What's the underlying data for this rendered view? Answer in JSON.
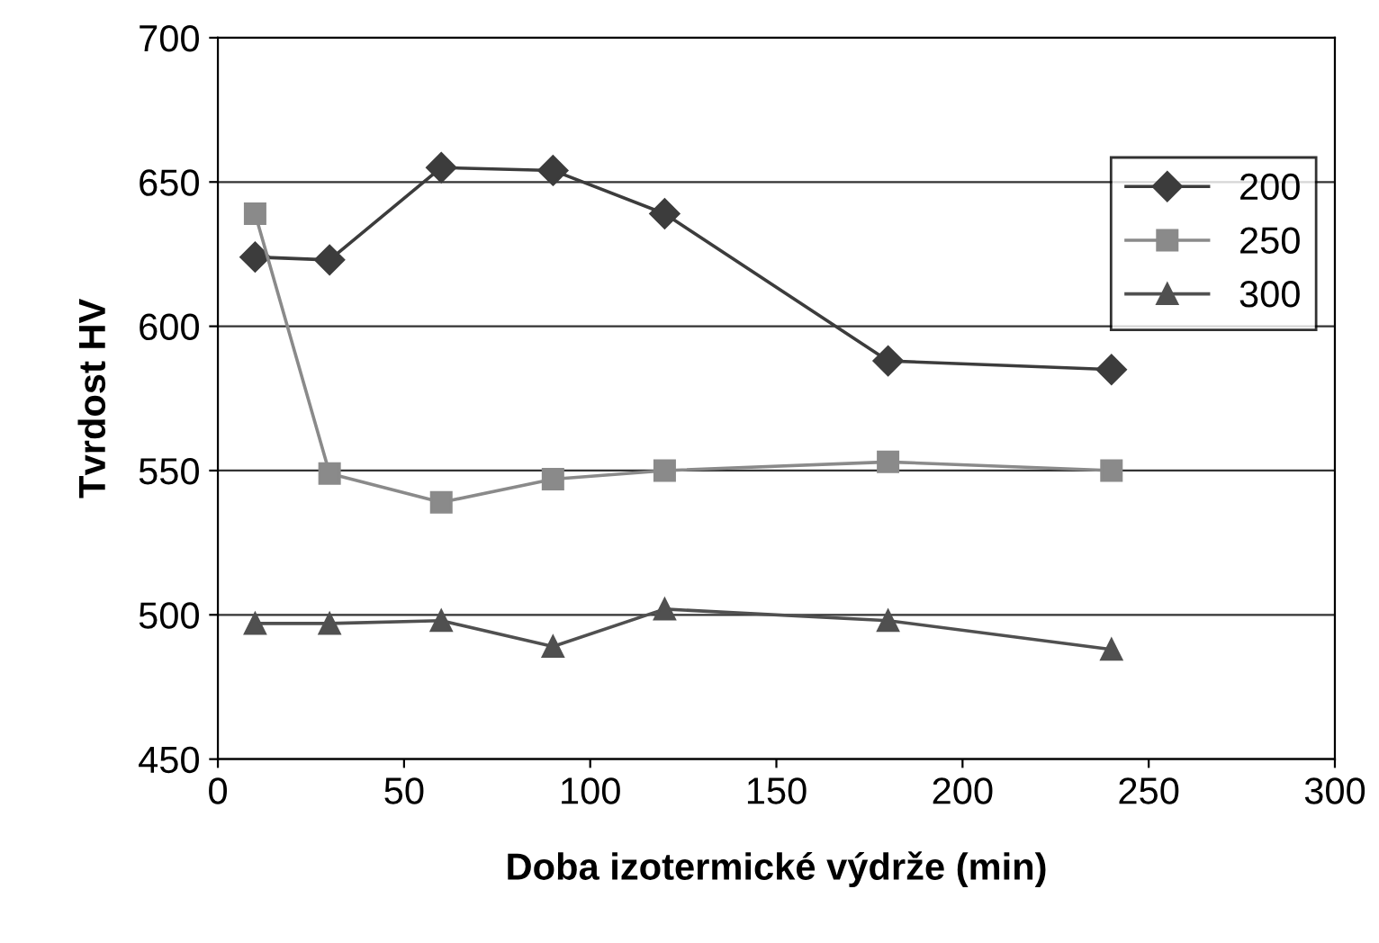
{
  "chart_data": {
    "type": "line",
    "xlabel": "Doba izotermické výdrže (min)",
    "ylabel": "Tvrdost HV",
    "x": [
      10,
      30,
      60,
      90,
      120,
      180,
      240
    ],
    "series": [
      {
        "name": "200",
        "color": "#3c3c3c",
        "marker": "diamond",
        "values": [
          624,
          623,
          655,
          654,
          639,
          588,
          585
        ]
      },
      {
        "name": "250",
        "color": "#8a8a8a",
        "marker": "square",
        "values": [
          639,
          549,
          539,
          547,
          550,
          553,
          550
        ]
      },
      {
        "name": "300",
        "color": "#505050",
        "marker": "triangle",
        "values": [
          497,
          497,
          498,
          489,
          502,
          498,
          488
        ]
      }
    ],
    "xlim": [
      0,
      300
    ],
    "xticks": [
      0,
      50,
      100,
      150,
      200,
      250,
      300
    ],
    "ylim": [
      450,
      700
    ],
    "yticks": [
      450,
      500,
      550,
      600,
      650,
      700
    ],
    "grid": "y",
    "legend": "top right",
    "line_style": "solid"
  }
}
